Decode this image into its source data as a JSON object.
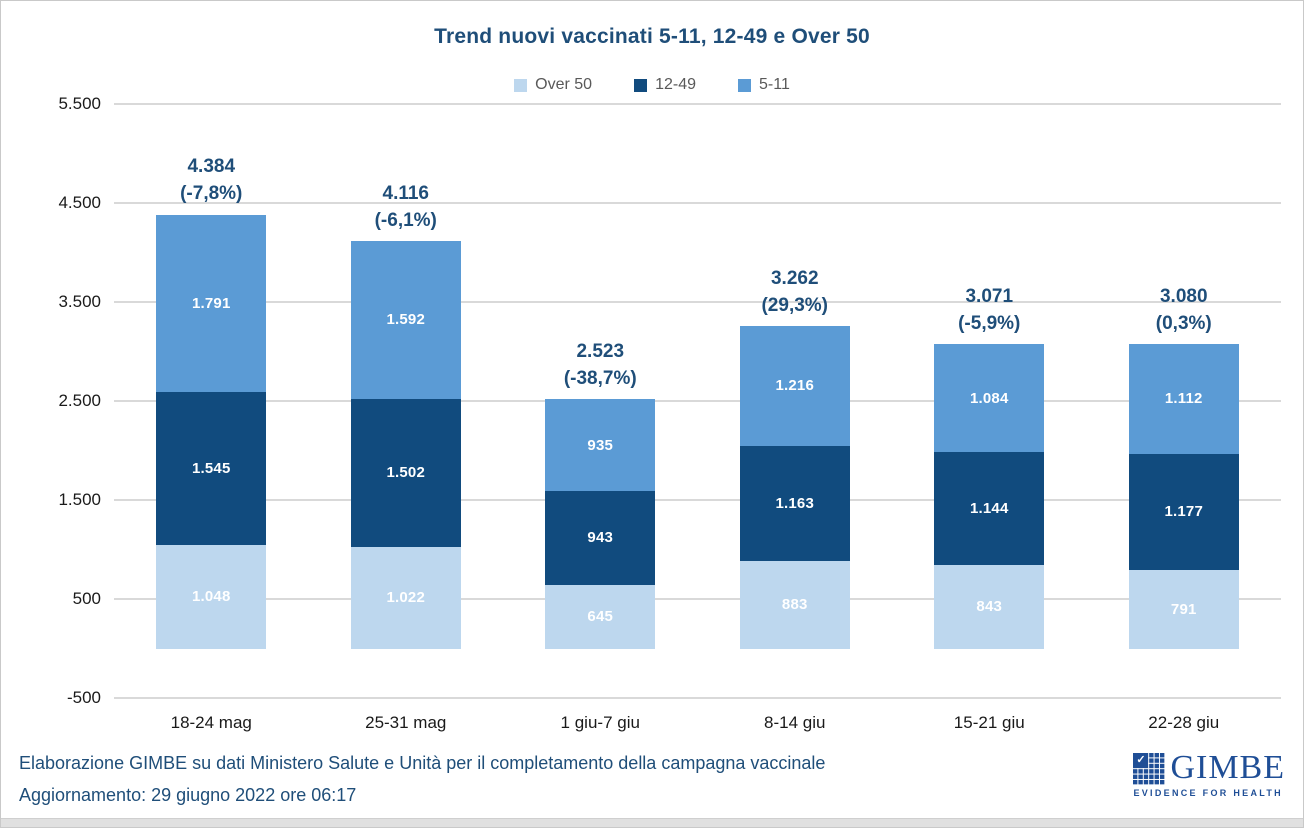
{
  "title": "Trend nuovi vaccinati 5-11, 12-49 e Over 50",
  "legend": [
    {
      "label": "Over 50",
      "color": "#BDD7EE"
    },
    {
      "label": "12-49",
      "color": "#114B7E"
    },
    {
      "label": "5-11",
      "color": "#5B9BD5"
    }
  ],
  "chart_data": {
    "type": "bar",
    "stacked": true,
    "title": "Trend nuovi vaccinati 5-11, 12-49 e Over 50",
    "categories": [
      "18-24 mag",
      "25-31 mag",
      "1 giu-7 giu",
      "8-14 giu",
      "15-21 giu",
      "22-28 giu"
    ],
    "series": [
      {
        "name": "Over 50",
        "color": "#BDD7EE",
        "values": [
          1048,
          1022,
          645,
          883,
          843,
          791
        ],
        "labels": [
          "1.048",
          "1.022",
          "645",
          "883",
          "843",
          "791"
        ]
      },
      {
        "name": "12-49",
        "color": "#114B7E",
        "values": [
          1545,
          1502,
          943,
          1163,
          1144,
          1177
        ],
        "labels": [
          "1.545",
          "1.502",
          "943",
          "1.163",
          "1.144",
          "1.177"
        ]
      },
      {
        "name": "5-11",
        "color": "#5B9BD5",
        "values": [
          1791,
          1592,
          935,
          1216,
          1084,
          1112
        ],
        "labels": [
          "1.791",
          "1.592",
          "935",
          "1.216",
          "1.084",
          "1.112"
        ]
      }
    ],
    "totals": [
      {
        "value": "4.384",
        "pct": "(-7,8%)"
      },
      {
        "value": "4.116",
        "pct": "(-6,1%)"
      },
      {
        "value": "2.523",
        "pct": "(-38,7%)"
      },
      {
        "value": "3.262",
        "pct": "(29,3%)"
      },
      {
        "value": "3.071",
        "pct": "(-5,9%)"
      },
      {
        "value": "3.080",
        "pct": "(0,3%)"
      }
    ],
    "y_axis": {
      "min": -500,
      "max": 5500,
      "tick_step": 1000,
      "ticks": [
        "5.500",
        "4.500",
        "3.500",
        "2.500",
        "1.500",
        "500",
        "-500"
      ]
    },
    "grid": true,
    "legend_position": "top",
    "colors": {
      "grid": "#D9D9D9",
      "total_label": "#1F4E79",
      "segment_label": "#FFFFFF"
    }
  },
  "footer": {
    "line1": "Elaborazione GIMBE su dati Ministero Salute e Unità per il completamento della campagna vaccinale",
    "line2": "Aggiornamento: 29 giugno 2022 ore 06:17"
  },
  "logo": {
    "name": "GIMBE",
    "tagline": "EVIDENCE FOR HEALTH",
    "check_glyph": "✓",
    "color": "#1F4E96"
  }
}
